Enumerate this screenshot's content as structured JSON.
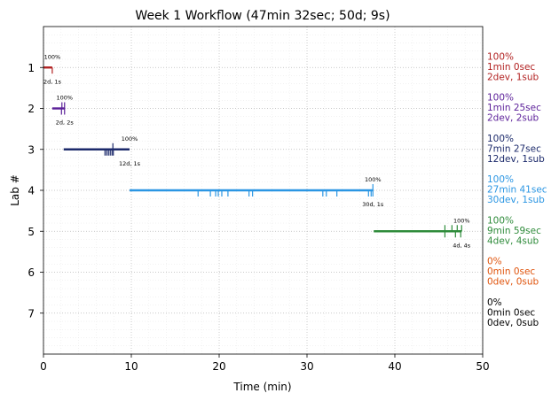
{
  "chart_data": {
    "type": "line",
    "title": "Week 1 Workflow (47min 32sec; 50d; 9s)",
    "xlabel": "Time (min)",
    "ylabel": "Lab #",
    "xlim": [
      0,
      50
    ],
    "ylim": [
      8,
      0
    ],
    "x_ticks": [
      "0",
      "10",
      "20",
      "30",
      "40",
      "50"
    ],
    "y_ticks": [
      "1",
      "2",
      "3",
      "4",
      "5",
      "6",
      "7"
    ],
    "grid": "dotted major and minor",
    "series": [
      {
        "lab": 1,
        "color": "#b22222",
        "start": 0.0,
        "end": 1.0,
        "dev_ticks": [
          1.0
        ],
        "sub_ticks": [],
        "peak_label": "100%",
        "count_label": "2d, 1s",
        "summary": [
          "100%",
          "1min 0sec",
          "2dev, 1sub"
        ]
      },
      {
        "lab": 2,
        "color": "#5b1f99",
        "start": 1.0,
        "end": 2.4,
        "dev_ticks": [
          2.05,
          2.4
        ],
        "sub_ticks": [
          2.1,
          2.4
        ],
        "peak_label": "100%",
        "count_label": "2d, 2s",
        "summary": [
          "100%",
          "1min 25sec",
          "2dev, 2sub"
        ]
      },
      {
        "lab": 3,
        "color": "#1c2a6b",
        "start": 2.3,
        "end": 9.8,
        "dev_ticks": [
          7.0,
          7.2,
          7.4,
          7.6,
          7.8,
          7.95
        ],
        "sub_ticks": [
          7.9
        ],
        "peak_label": "100%",
        "count_label": "12d, 1s",
        "summary": [
          "100%",
          "7min 27sec",
          "12dev, 1sub"
        ]
      },
      {
        "lab": 4,
        "color": "#2b96e3",
        "start": 9.8,
        "end": 37.5,
        "dev_ticks": [
          17.6,
          19.0,
          19.6,
          19.9,
          20.3,
          21.0,
          23.4,
          23.8,
          31.8,
          32.2,
          33.4,
          37.0,
          37.3,
          37.5
        ],
        "sub_ticks": [
          37.5
        ],
        "peak_label": "100%",
        "count_label": "30d, 1s",
        "summary": [
          "100%",
          "27min 41sec",
          "30dev, 1sub"
        ]
      },
      {
        "lab": 5,
        "color": "#2e8b3a",
        "start": 37.6,
        "end": 47.6,
        "dev_ticks": [
          45.7,
          46.9,
          47.5
        ],
        "sub_ticks": [
          45.7,
          46.5,
          47.1,
          47.6
        ],
        "peak_label": "100%",
        "count_label": "4d, 4s",
        "summary": [
          "100%",
          "9min 59sec",
          "4dev, 4sub"
        ]
      },
      {
        "lab": 6,
        "color": "#e0550e",
        "start": null,
        "end": null,
        "dev_ticks": [],
        "sub_ticks": [],
        "peak_label": "",
        "count_label": "",
        "summary": [
          "0%",
          "0min 0sec",
          "0dev, 0sub"
        ]
      },
      {
        "lab": 7,
        "color": "#000000",
        "start": null,
        "end": null,
        "dev_ticks": [],
        "sub_ticks": [],
        "peak_label": "",
        "count_label": "",
        "summary": [
          "0%",
          "0min 0sec",
          "0dev, 0sub"
        ]
      }
    ]
  }
}
